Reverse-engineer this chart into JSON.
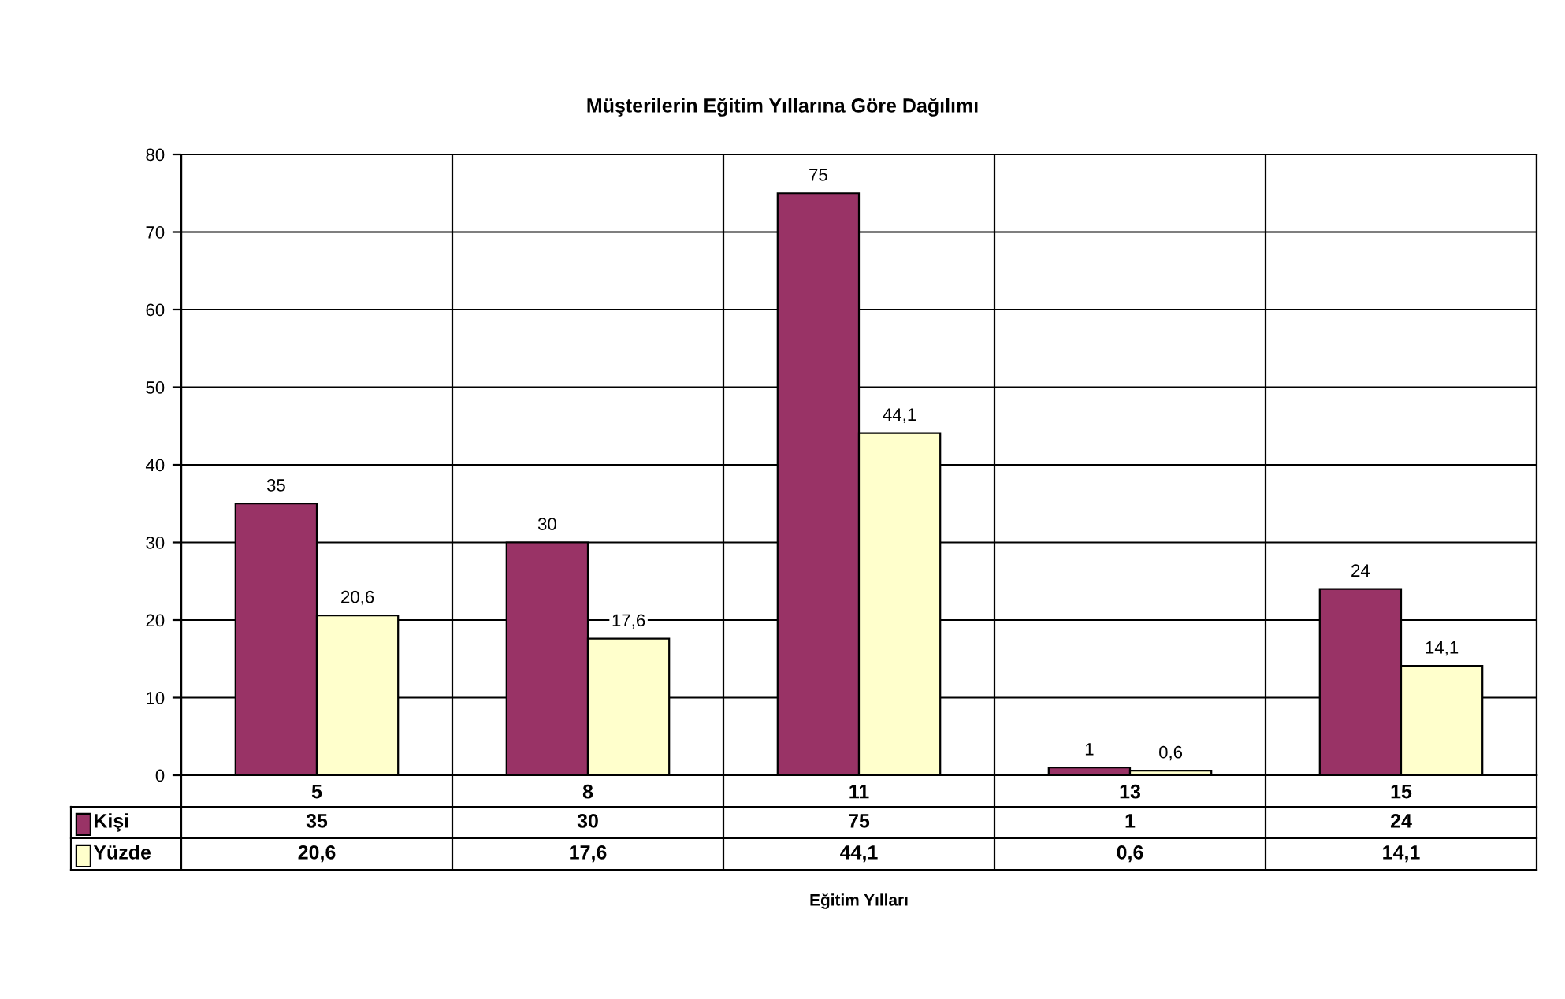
{
  "chart_data": {
    "type": "bar",
    "title": "Müşterilerin Eğitim Yıllarına Göre Dağılımı",
    "annotations": [
      "Eğitim Yılları"
    ],
    "categories": [
      "5",
      "8",
      "11",
      "13",
      "15"
    ],
    "series": [
      {
        "name": "Kişi",
        "color": "#993366",
        "values": [
          35,
          30,
          75,
          1,
          24
        ],
        "value_labels": [
          "35",
          "30",
          "75",
          "1",
          "24"
        ]
      },
      {
        "name": "Yüzde",
        "color": "#ffffcc",
        "values": [
          20.6,
          17.6,
          44.1,
          0.6,
          14.1
        ],
        "value_labels": [
          "20,6",
          "17,6",
          "44,1",
          "0,6",
          "14,1"
        ]
      }
    ],
    "ylim": [
      0,
      80
    ],
    "yticks": [
      0,
      10,
      20,
      30,
      40,
      50,
      60,
      70,
      80
    ],
    "grid": true,
    "legend": "bottom left"
  }
}
